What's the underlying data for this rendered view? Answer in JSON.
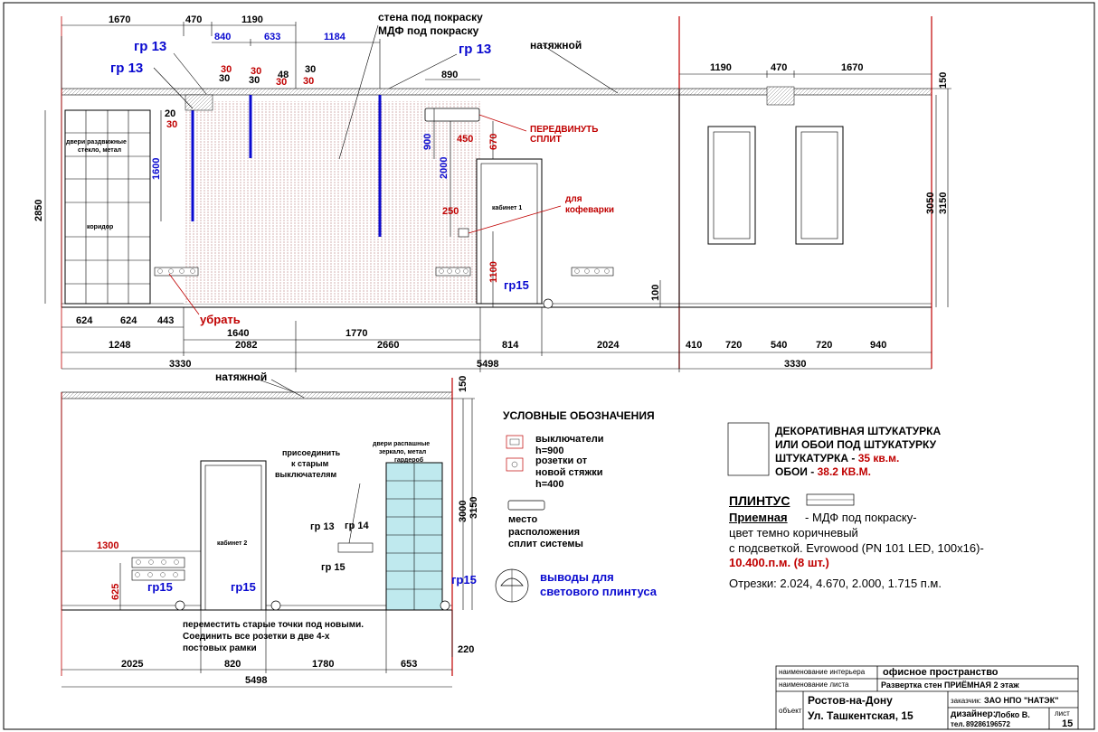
{
  "top_dims": {
    "d1670a": "1670",
    "d470a": "470",
    "d1190a": "1190",
    "d840": "840",
    "d633": "633",
    "d1184": "1184",
    "d890": "890",
    "d1190b": "1190",
    "d470b": "470",
    "d1670b": "1670",
    "d150a": "150"
  },
  "small_dims": {
    "s30a": "30",
    "s30b": "30",
    "s30c": "30",
    "s30d": "30",
    "s48": "48",
    "s30e": "30",
    "s30f": "30",
    "s30g": "30",
    "s20": "20",
    "s30h": "30"
  },
  "vert_dims": {
    "v2850": "2850",
    "v1600": "1600",
    "v900": "900",
    "v2000": "2000",
    "v670": "670",
    "v1100": "1100",
    "v100": "100",
    "v3050": "3050",
    "v3150a": "3150",
    "v150b": "150",
    "v3000": "3000",
    "v3150b": "3150",
    "v625": "625"
  },
  "red_dims": {
    "r450": "450",
    "r250": "250",
    "r1300": "1300"
  },
  "bottom_dims_upper": {
    "b624a": "624",
    "b624b": "624",
    "b443": "443",
    "b1640": "1640",
    "b1770": "1770",
    "b1248": "1248",
    "b2082": "2082",
    "b2660": "2660",
    "b814": "814",
    "b2024": "2024",
    "b410": "410",
    "b720a": "720",
    "b540": "540",
    "b720b": "720",
    "b940": "940",
    "b3330a": "3330",
    "b5498a": "5498",
    "b3330b": "3330"
  },
  "bottom_dims_lower": {
    "l2025": "2025",
    "l820": "820",
    "l1780": "1780",
    "l653": "653",
    "l220": "220",
    "l5498": "5498"
  },
  "labels": {
    "wall_paint_1": "стена под покраску",
    "wall_paint_2": "МДФ под покраску",
    "stretch_top": "натяжной",
    "stretch_bottom": "натяжной",
    "gr13_a": "гр 13",
    "gr13_b": "гр 13",
    "gr13_c": "гр 13",
    "gr15_a": "гр15",
    "gr15_b": "гр15",
    "gr15_c": "гр15",
    "gr15_d": "гр15",
    "doors_sliding_1": "двери раздвижные",
    "doors_sliding_2": "стекло, метал",
    "corridor": "коридор",
    "remove": "убрать",
    "move_split_1": "ПЕРЕДВИНУТЬ",
    "move_split_2": "СПЛИТ",
    "coffee_1": "для",
    "coffee_2": "кофеварки",
    "cabinet1": "кабинет 1",
    "cabinet2": "кабинет 2",
    "connect_1": "присоединить",
    "connect_2": "к старым",
    "connect_3": "выключателям",
    "swing_doors_1": "двери распашные",
    "swing_doors_2": "зеркало, метал",
    "wardrobe": "гардероб",
    "gr13_d": "гр 13",
    "gr14": "гр 14",
    "gr15_e": "гр 15",
    "move_points_1": "переместить старые точки под новыми.",
    "move_points_2": "Соединить все розетки в две 4-х",
    "move_points_3": "постовых рамки"
  },
  "legend": {
    "title": "УСЛОВНЫЕ ОБОЗНАЧЕНИЯ",
    "switches_1": "выключатели",
    "switches_2": "h=900",
    "sockets_1": "розетки от",
    "sockets_2": "новой стяжки",
    "sockets_3": "h=400",
    "split_1": "место",
    "split_2": "расположения",
    "split_3": "сплит системы",
    "light_1": "выводы для",
    "light_2": "светового плинтуса"
  },
  "finish": {
    "line1": "ДЕКОРАТИВНАЯ ШТУКАТУРКА",
    "line2": "ИЛИ ОБОИ ПОД ШТУКАТУРКУ",
    "plaster_label": "ШТУКАТУРКА - ",
    "plaster_value": "35 кв.м.",
    "wallpaper_label": "ОБОИ - ",
    "wallpaper_value": "38.2 КВ.М."
  },
  "plinth": {
    "title": "ПЛИНТУС",
    "room": "Приемная",
    "desc1": " - МДФ под покраску-",
    "desc2": "цвет темно коричневый",
    "desc3": "с подсветкой. Evrowood (PN 101 LED, 100x16)-",
    "amount": "10.400.п.м. (8 шт.)",
    "cuts": "Отрезки: 2.024, 4.670, 2.000, 1.715 п.м."
  },
  "title_block": {
    "interior_name_label": "наименование интерьера",
    "interior_name": "офисное пространство",
    "sheet_name_label": "наименование листа",
    "sheet_name": "Развертка стен ПРИЁМНАЯ 2 этаж",
    "object_label": "объект",
    "city": "Ростов-на-Дону",
    "address": "Ул. Ташкентская, 15",
    "client_label": "заказчик:",
    "client": "ЗАО НПО \"НАТЭК\"",
    "designer_label": "дизайнер:",
    "designer": "Лобко В.",
    "phone_label": "тел.",
    "phone": "89286196572",
    "sheet_label": "лист",
    "sheet_no": "15"
  },
  "colors": {
    "accent_red": "#c00000",
    "accent_blue": "#0a0ad0",
    "hatch": "#d8b6b6",
    "glass": "#bfe9ee"
  }
}
